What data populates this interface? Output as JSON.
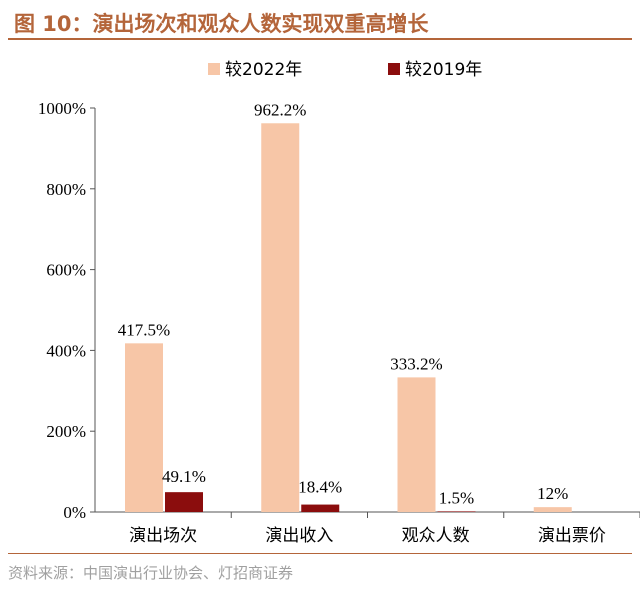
{
  "header": {
    "title": "图 10：演出场次和观众人数实现双重高增长"
  },
  "footer": {
    "source": "资料来源：中国演出行业协会、灯招商证券"
  },
  "colors": {
    "brand": "#b4653a",
    "series_2022": "#f7c6a7",
    "series_2019": "#8b0d0d",
    "axis": "#555555"
  },
  "chart_data": {
    "type": "bar",
    "title": "演出场次和观众人数实现双重高增长",
    "categories": [
      "演出场次",
      "演出收入",
      "观众人数",
      "演出票价"
    ],
    "series": [
      {
        "name": "较2022年",
        "values": [
          417.5,
          962.2,
          333.2,
          12
        ],
        "labels": [
          "417.5%",
          "962.2%",
          "333.2%",
          "12%"
        ]
      },
      {
        "name": "较2019年",
        "values": [
          49.1,
          18.4,
          1.5,
          null
        ],
        "labels": [
          "49.1%",
          "18.4%",
          "1.5%",
          ""
        ]
      }
    ],
    "ylim": [
      0,
      1000
    ],
    "yticks": [
      0,
      200,
      400,
      600,
      800,
      1000
    ],
    "ytick_labels": [
      "0%",
      "200%",
      "400%",
      "600%",
      "800%",
      "1000%"
    ],
    "xlabel": "",
    "ylabel": "",
    "legend_position": "top-center",
    "grid": false
  }
}
